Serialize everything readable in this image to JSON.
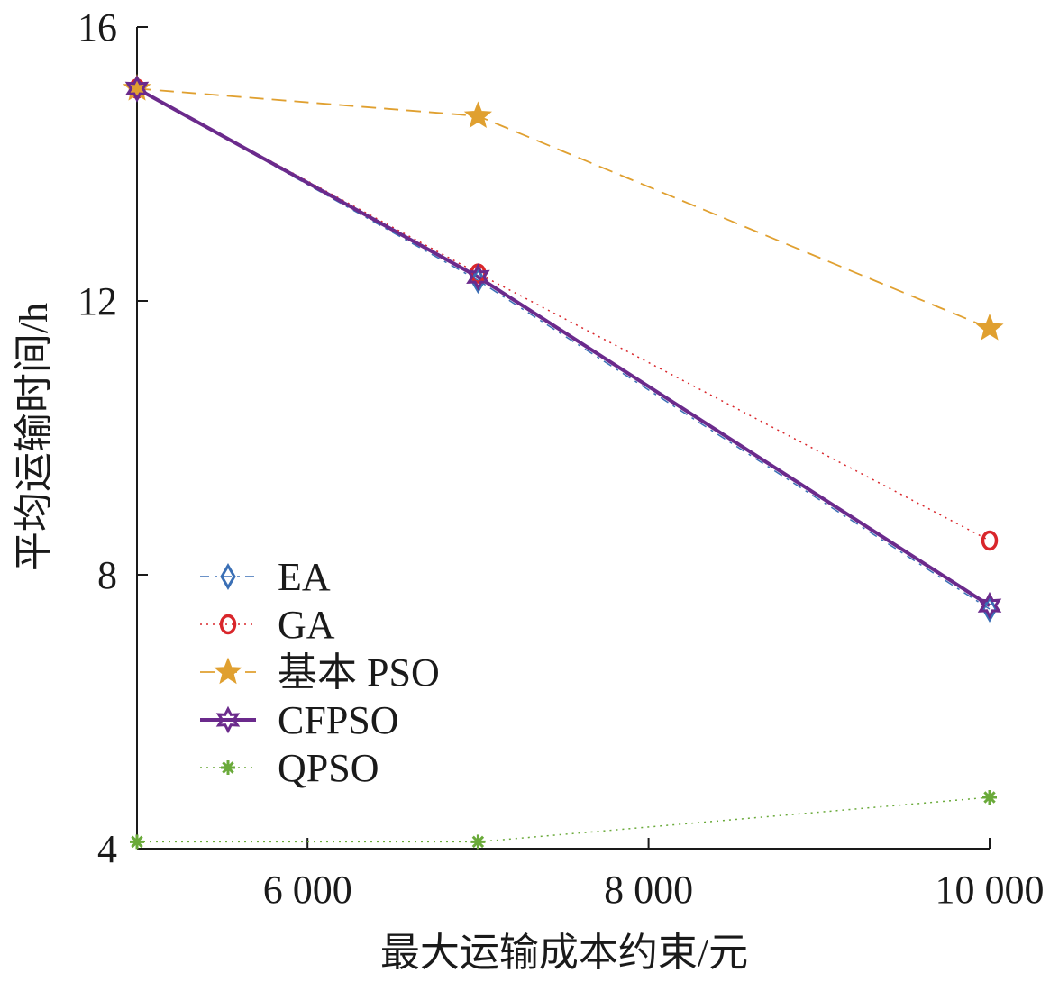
{
  "chart_data": {
    "type": "line",
    "title": "",
    "xlabel": "最大运输成本约束/元",
    "ylabel": "平均运输时间/h",
    "xlim": [
      5000,
      10000
    ],
    "ylim": [
      4,
      16
    ],
    "xticks": [
      6000,
      8000,
      10000
    ],
    "xtick_labels": [
      "6 000",
      "8 000",
      "10 000"
    ],
    "yticks": [
      4,
      8,
      12,
      16
    ],
    "ytick_labels": [
      "4",
      "8",
      "12",
      "16"
    ],
    "x": [
      5000,
      7000,
      10000
    ],
    "legend_position": "lower-left",
    "grid": false,
    "series": [
      {
        "name": "EA",
        "values": [
          15.1,
          12.3,
          7.5
        ],
        "color": "#3a6fb5",
        "dash": "10,6,3,6",
        "marker": "diamond",
        "width": 1.5
      },
      {
        "name": "GA",
        "values": [
          15.1,
          12.4,
          8.5
        ],
        "color": "#d9262b",
        "dash": "2,5",
        "marker": "circle",
        "width": 1.5
      },
      {
        "name": "基本 PSO",
        "values": [
          15.1,
          14.7,
          11.6
        ],
        "color": "#e0a030",
        "dash": "16,9",
        "marker": "star",
        "width": 1.8
      },
      {
        "name": "CFPSO",
        "values": [
          15.1,
          12.35,
          7.55
        ],
        "color": "#6b2a8c",
        "dash": "",
        "marker": "hexagram",
        "width": 4
      },
      {
        "name": "QPSO",
        "values": [
          4.1,
          4.1,
          4.75
        ],
        "color": "#6aaa3a",
        "dash": "2,5",
        "marker": "asterisk",
        "width": 1.5
      }
    ]
  }
}
